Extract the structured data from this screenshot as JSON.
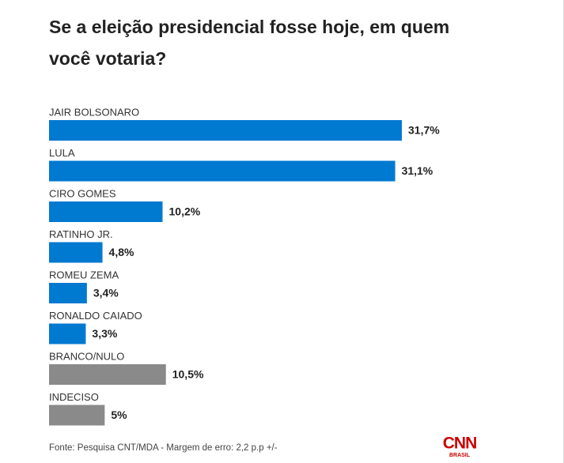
{
  "chart_data": {
    "type": "bar",
    "orientation": "horizontal",
    "title": "Se a eleição presidencial fosse hoje, em quem você votaria?",
    "categories": [
      "JAIR BOLSONARO",
      "LULA",
      "CIRO GOMES",
      "RATINHO JR.",
      "ROMEU ZEMA",
      "RONALDO CAIADO",
      "BRANCO/NULO",
      "INDECISO"
    ],
    "values": [
      31.7,
      31.1,
      10.2,
      4.8,
      3.4,
      3.3,
      10.5,
      5
    ],
    "value_labels": [
      "31,7%",
      "31,1%",
      "10,2%",
      "4,8%",
      "3,4%",
      "3,3%",
      "10,5%",
      "5%"
    ],
    "colors": [
      "#0079d1",
      "#0079d1",
      "#0079d1",
      "#0079d1",
      "#0079d1",
      "#0079d1",
      "#8a8a8a",
      "#8a8a8a"
    ],
    "source": "Fonte: Pesquisa CNT/MDA - Margem de erro: 2,2 p.p +/-",
    "logo": {
      "name": "CNN",
      "subtitle": "BRASIL"
    }
  }
}
